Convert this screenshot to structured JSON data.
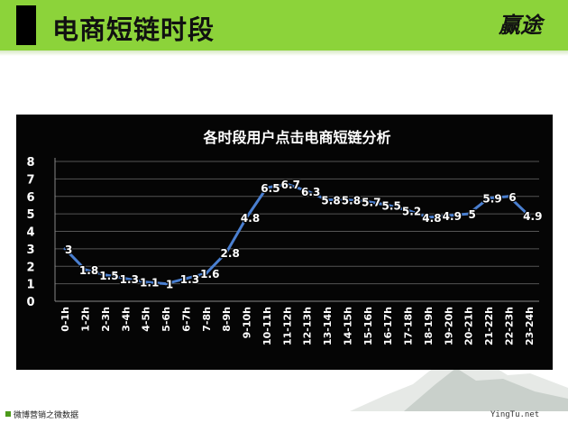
{
  "header": {
    "title": "电商短链时段",
    "logo": "赢途"
  },
  "footer": {
    "left": "微博营销之微数据",
    "right": "YingTu.net"
  },
  "colors": {
    "header_bg": "#8cd33a",
    "chart_bg": "#050505",
    "line": "#4a7fd0",
    "text": "#ffffff",
    "grid": "#555555"
  },
  "chart_data": {
    "type": "line",
    "title": "各时段用户点击电商短链分析",
    "categories": [
      "0-1h",
      "1-2h",
      "2-3h",
      "3-4h",
      "4-5h",
      "5-6h",
      "6-7h",
      "7-8h",
      "8-9h",
      "9-10h",
      "10-11h",
      "11-12h",
      "12-13h",
      "13-14h",
      "14-15h",
      "15-16h",
      "16-17h",
      "17-18h",
      "18-19h",
      "19-20h",
      "20-21h",
      "21-22h",
      "22-23h",
      "23-24h"
    ],
    "values": [
      3,
      1.8,
      1.5,
      1.3,
      1.1,
      1,
      1.3,
      1.6,
      2.8,
      4.8,
      6.5,
      6.7,
      6.3,
      5.8,
      5.8,
      5.7,
      5.5,
      5.2,
      4.8,
      4.9,
      5,
      5.9,
      6,
      4.9
    ],
    "labels": [
      "3",
      "1.8",
      "1.5",
      "1.3",
      "1.1",
      "1",
      "1.3",
      "1.6",
      "2.8",
      "4.8",
      "6.5",
      "6.7",
      "6.3",
      "5.8",
      "5.8",
      "5.7",
      "5.5",
      "5.2",
      "4.8",
      "4.9",
      "5",
      "5.9",
      "6",
      "4.9"
    ],
    "yticks": [
      "0",
      "1",
      "2",
      "3",
      "4",
      "5",
      "6",
      "7",
      "8"
    ],
    "ylim": [
      0,
      8
    ],
    "grid": true,
    "legend": "none"
  }
}
